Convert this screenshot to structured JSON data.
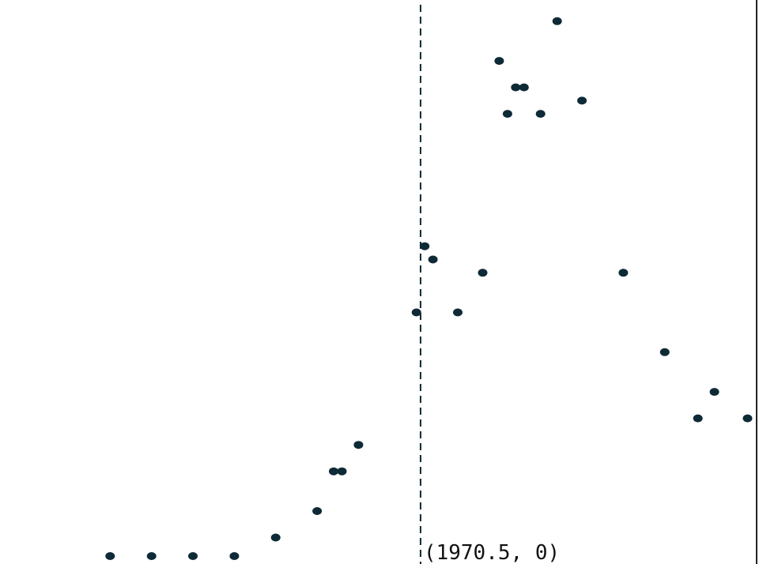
{
  "colors": {
    "point": "#0e2a36",
    "background": "#ffffff",
    "annotation": "#111111"
  },
  "chart_data": {
    "type": "scatter",
    "title": "",
    "xlabel": "",
    "ylabel": "",
    "grid": false,
    "xlim": [
      1962,
      1978.2
    ],
    "ylim": [
      0,
      21.3
    ],
    "x": [
      1963,
      1964,
      1965,
      1966,
      1967,
      1968,
      1968.4,
      1968.6,
      1969,
      1970.4,
      1970.6,
      1970.8,
      1971.4,
      1972,
      1972.4,
      1972.6,
      1972.8,
      1973,
      1973.4,
      1973.8,
      1974.4,
      1975.4,
      1976.4,
      1977.2,
      1977.6,
      1978.4
    ],
    "y": [
      0,
      0,
      0,
      0,
      1,
      2,
      3.5,
      3.5,
      4.5,
      9.5,
      12,
      11.5,
      9.5,
      11,
      19,
      17,
      18,
      18,
      17,
      20.5,
      17.5,
      11,
      8,
      5.5,
      6.5,
      5.5
    ],
    "vline": {
      "x": 1970.5,
      "style": "dashed"
    },
    "annotation": {
      "text": "(1970.5, 0)",
      "x": 1970.5,
      "y": 0
    }
  }
}
